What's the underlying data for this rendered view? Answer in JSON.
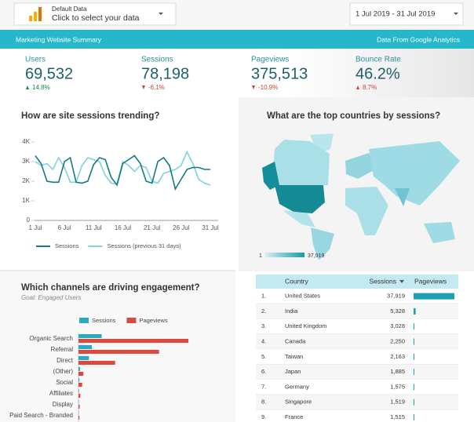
{
  "header": {
    "source_label": "Default Data",
    "source_prompt": "Click to select your data",
    "date_range": "1 Jul 2019 - 31 Jul 2019"
  },
  "banner": {
    "title": "Marketing Website Summary",
    "source": "Data From Google Analytics"
  },
  "scorecards": [
    {
      "label": "Users",
      "value": "69,532",
      "change": "14.8%",
      "direction": "up",
      "change_color": "#0b8f3d"
    },
    {
      "label": "Sessions",
      "value": "78,198",
      "change": "-6.1%",
      "direction": "down",
      "change_color": "#d2402f"
    },
    {
      "label": "Pageviews",
      "value": "375,513",
      "change": "-10.9%",
      "direction": "down",
      "change_color": "#d2402f"
    },
    {
      "label": "Bounce Rate",
      "value": "46.2%",
      "change": "8.7%",
      "direction": "up",
      "change_color": "#d2402f"
    }
  ],
  "sessions_chart": {
    "type": "line",
    "title": "How are site sessions trending?",
    "categories": [
      "1 Jul",
      null,
      null,
      null,
      null,
      "6 Jul",
      null,
      null,
      null,
      null,
      "11 Jul",
      null,
      null,
      null,
      null,
      "16 Jul",
      null,
      null,
      null,
      null,
      "21 Jul",
      null,
      null,
      null,
      null,
      "26 Jul",
      null,
      null,
      null,
      null,
      "31 Jul"
    ],
    "ylim": [
      0,
      4000
    ],
    "yticks": [
      0,
      {
        "value": 1000,
        "label": "1K"
      },
      {
        "value": 2000,
        "label": "2K"
      },
      {
        "value": 3000,
        "label": "3K"
      },
      {
        "value": 4000,
        "label": "4K"
      }
    ],
    "grid": false,
    "series": [
      {
        "name": "Sessions",
        "color": "#137b80",
        "values": [
          3300,
          2900,
          2000,
          1950,
          1950,
          3000,
          3200,
          1950,
          1900,
          2000,
          2850,
          3200,
          3100,
          2200,
          1800,
          2900,
          3100,
          3300,
          2900,
          2000,
          1900,
          3000,
          3200,
          2800,
          1600,
          2100,
          2600,
          2700,
          2700,
          2600,
          2600
        ]
      },
      {
        "name": "Sessions (previous 31 days)",
        "color": "#7fd2de",
        "values": [
          3000,
          2800,
          2900,
          2600,
          3200,
          2700,
          1950,
          1950,
          2800,
          3200,
          3100,
          3000,
          2300,
          1900,
          1850,
          3000,
          2800,
          2500,
          2800,
          2700,
          2000,
          1900,
          2400,
          2500,
          2600,
          2800,
          3500,
          2900,
          2100,
          1900,
          1800
        ]
      }
    ]
  },
  "map": {
    "title": "What are the top countries by sessions?",
    "legend_min": "1",
    "legend_max": "37,919"
  },
  "channels_chart": {
    "type": "bar",
    "orientation": "horizontal",
    "title": "Which channels are driving engagement?",
    "subtitle": "Goal: Engaged Users",
    "categories": [
      "Organic Search",
      "Referral",
      "Direct",
      "(Other)",
      "Social",
      "Affiliates",
      "Display",
      "Paid Search - Branded"
    ],
    "series": [
      {
        "name": "Sessions",
        "color": "#29a9c2",
        "values": [
          38000,
          22000,
          17000,
          2500,
          1500,
          900,
          600,
          400
        ]
      },
      {
        "name": "Pageviews",
        "color": "#dc4a3d",
        "values": [
          180000,
          132000,
          60000,
          8000,
          6000,
          3000,
          2000,
          1500
        ]
      }
    ]
  },
  "countries_table": {
    "columns": [
      "Country",
      "Sessions",
      "Pageviews"
    ],
    "bar_color": "#1aa2b4",
    "rows": [
      {
        "rank": "1.",
        "country": "United States",
        "sessions": "37,919",
        "pageviews": 180000
      },
      {
        "rank": "2.",
        "country": "India",
        "sessions": "5,328",
        "pageviews": 9000
      },
      {
        "rank": "3.",
        "country": "United Kingdom",
        "sessions": "3,028",
        "pageviews": 3500
      },
      {
        "rank": "4.",
        "country": "Canada",
        "sessions": "2,250",
        "pageviews": 2800
      },
      {
        "rank": "5.",
        "country": "Taiwan",
        "sessions": "2,163",
        "pageviews": 2500
      },
      {
        "rank": "6.",
        "country": "Japan",
        "sessions": "1,885",
        "pageviews": 2300
      },
      {
        "rank": "7.",
        "country": "Germany",
        "sessions": "1,575",
        "pageviews": 2000
      },
      {
        "rank": "8.",
        "country": "Singapore",
        "sessions": "1,519",
        "pageviews": 1900
      },
      {
        "rank": "9.",
        "country": "France",
        "sessions": "1,515",
        "pageviews": 1800
      }
    ]
  }
}
